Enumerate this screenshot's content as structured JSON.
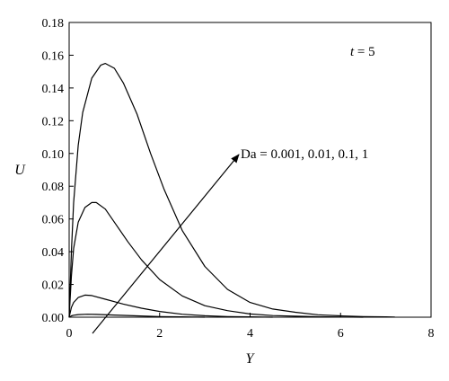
{
  "chart_data": {
    "type": "line",
    "xlabel": "Y",
    "ylabel": "U",
    "xlim": [
      0,
      8
    ],
    "ylim": [
      0,
      0.18
    ],
    "x_ticks": [
      "0",
      "2",
      "4",
      "6",
      "8"
    ],
    "y_ticks": [
      "0.00",
      "0.02",
      "0.04",
      "0.06",
      "0.08",
      "0.10",
      "0.12",
      "0.14",
      "0.16",
      "0.18"
    ],
    "grid": false,
    "annotations": {
      "time_var": "t",
      "time_rest": " = 5",
      "arrow_label": "Da = 0.001, 0.01, 0.1, 1"
    },
    "series": [
      {
        "x": [
          0,
          0.05,
          0.1,
          0.2,
          0.3,
          0.5,
          0.7,
          0.8,
          1.0,
          1.2,
          1.5,
          1.8,
          2.1,
          2.5,
          3.0,
          3.5,
          4.0,
          4.5,
          5.0,
          5.5,
          6.0,
          6.5,
          7.0,
          7.2
        ],
        "y": [
          0.0,
          0.04,
          0.07,
          0.105,
          0.125,
          0.146,
          0.154,
          0.155,
          0.152,
          0.143,
          0.124,
          0.1,
          0.078,
          0.053,
          0.031,
          0.017,
          0.009,
          0.005,
          0.003,
          0.0015,
          0.0008,
          0.0004,
          0.0002,
          0.0001
        ]
      },
      {
        "x": [
          0,
          0.05,
          0.1,
          0.2,
          0.35,
          0.5,
          0.6,
          0.8,
          1.0,
          1.3,
          1.6,
          2.0,
          2.5,
          3.0,
          3.5,
          4.0,
          4.5,
          5.0,
          5.5,
          6.0,
          6.5
        ],
        "y": [
          0.0,
          0.025,
          0.042,
          0.058,
          0.067,
          0.07,
          0.07,
          0.066,
          0.058,
          0.046,
          0.035,
          0.023,
          0.013,
          0.007,
          0.004,
          0.002,
          0.001,
          0.0006,
          0.0003,
          0.0001,
          0.0
        ]
      },
      {
        "x": [
          0,
          0.05,
          0.1,
          0.2,
          0.35,
          0.5,
          0.8,
          1.2,
          1.6,
          2.0,
          2.5,
          3.0,
          3.5,
          4.0,
          4.5
        ],
        "y": [
          0.0,
          0.006,
          0.009,
          0.012,
          0.0135,
          0.0132,
          0.011,
          0.008,
          0.0055,
          0.0035,
          0.0018,
          0.0009,
          0.0004,
          0.0002,
          0.0
        ]
      },
      {
        "x": [
          0,
          0.05,
          0.1,
          0.2,
          0.4,
          0.6,
          1.0,
          1.5,
          2.0,
          2.5,
          3.0
        ],
        "y": [
          0.0,
          0.0008,
          0.0012,
          0.0016,
          0.0018,
          0.0017,
          0.0013,
          0.0008,
          0.0004,
          0.0002,
          0.0
        ]
      }
    ]
  }
}
